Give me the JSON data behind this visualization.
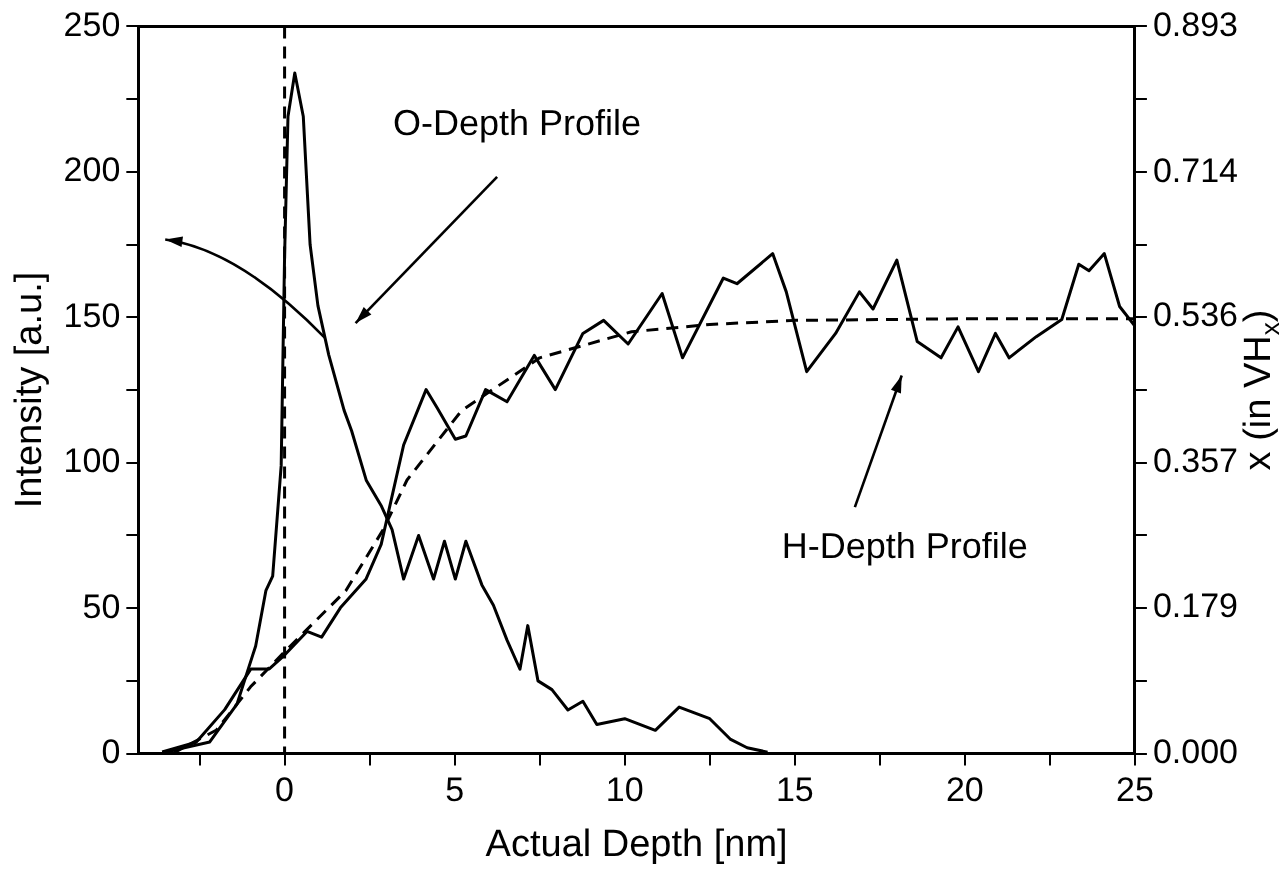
{
  "chart_data": {
    "type": "line",
    "xlabel": "Actual Depth [nm]",
    "ylabel": "Intensity [a.u.]",
    "y2label": "x (in VH$_{x}$)",
    "xlim": [
      -4.3,
      25
    ],
    "xticks": [
      {
        "value": -2.5,
        "label": null
      },
      0,
      {
        "value": 2.5,
        "label": null
      },
      5,
      {
        "value": 7.5,
        "label": null
      },
      10,
      {
        "value": 12.5,
        "label": null
      },
      15,
      {
        "value": 17.5,
        "label": null
      },
      20,
      {
        "value": 22.5,
        "label": null
      },
      25
    ],
    "ylim": [
      0,
      250
    ],
    "yticks": [
      0,
      {
        "value": 25,
        "label": null
      },
      50,
      {
        "value": 75,
        "label": null
      },
      100,
      {
        "value": 125,
        "label": null
      },
      150,
      {
        "value": 175,
        "label": null
      },
      200,
      {
        "value": 225,
        "label": null
      },
      250
    ],
    "y2lim": [
      0,
      0.893
    ],
    "y2ticks": [
      {
        "value": 0,
        "label": "0.000"
      },
      {
        "value": 0.089,
        "label": null
      },
      0.179,
      {
        "value": 0.268,
        "label": null
      },
      0.357,
      {
        "value": 0.446,
        "label": null
      },
      0.536,
      {
        "value": 0.625,
        "label": null
      },
      0.714,
      {
        "value": 0.804,
        "label": null
      },
      0.893
    ],
    "grid": false,
    "legend": false,
    "marker": "none",
    "line_style": "solid",
    "series": [
      {
        "color": "#000000",
        "x": [
          -3.5,
          -2.2,
          -1.4,
          -0.85,
          -0.55,
          -0.35,
          -0.1,
          0,
          0.1,
          0.3,
          0.55,
          0.75,
          0.98,
          1.3,
          1.75,
          1.97,
          2.4,
          2.85,
          3.16,
          3.5,
          3.94,
          4.38,
          4.7,
          5.02,
          5.33,
          5.8,
          6.14,
          6.54,
          6.92,
          7.15,
          7.45,
          7.86,
          8.33,
          8.77,
          9.18,
          10,
          10.9,
          11.6,
          12.5,
          13.1,
          13.6,
          14.2
        ],
        "values": [
          0.5,
          4,
          17,
          37,
          56,
          61,
          99,
          171,
          219,
          234,
          219,
          175,
          154,
          137,
          118,
          111,
          94,
          85,
          77,
          60,
          75,
          60,
          73,
          60,
          73,
          58,
          51,
          39,
          29,
          44,
          25,
          22,
          15,
          18,
          10,
          12,
          8,
          16,
          12,
          5,
          2,
          0.5
        ]
      },
      {
        "color": "#000000",
        "axis": "y2",
        "x": [
          -3.6,
          -2.6,
          -1.76,
          -0.99,
          -0.45,
          0,
          0.66,
          1.09,
          1.64,
          2.39,
          2.84,
          3.5,
          4.16,
          4.48,
          5.02,
          5.33,
          5.91,
          6.54,
          7.34,
          7.96,
          8.77,
          9.38,
          10.1,
          11.1,
          11.7,
          12.9,
          13.3,
          14.35,
          14.75,
          15.35,
          16.2,
          16.9,
          17.3,
          18,
          18.6,
          19.3,
          19.8,
          20.4,
          20.9,
          21.3,
          22.1,
          22.85,
          23.35,
          23.65,
          24.1,
          24.55,
          25
        ],
        "values": [
          0.002,
          0.014,
          0.054,
          0.104,
          0.104,
          0.121,
          0.15,
          0.143,
          0.179,
          0.214,
          0.257,
          0.379,
          0.447,
          0.425,
          0.386,
          0.39,
          0.447,
          0.432,
          0.489,
          0.447,
          0.516,
          0.532,
          0.503,
          0.565,
          0.486,
          0.584,
          0.577,
          0.614,
          0.567,
          0.469,
          0.516,
          0.567,
          0.546,
          0.606,
          0.506,
          0.486,
          0.524,
          0.469,
          0.516,
          0.486,
          0.512,
          0.533,
          0.601,
          0.593,
          0.614,
          0.549,
          0.525
        ]
      },
      {
        "color": "#000000",
        "axis": "y2",
        "line_style": "dashed",
        "x": [
          -3.3,
          -2,
          -1,
          0,
          1.8,
          2.9,
          3.6,
          5.2,
          7.5,
          10.2,
          12.5,
          15,
          20,
          25
        ],
        "values": [
          0,
          0.029,
          0.082,
          0.125,
          0.2,
          0.275,
          0.336,
          0.421,
          0.486,
          0.518,
          0.527,
          0.532,
          0.534,
          0.534
        ]
      }
    ],
    "ref_lines": [
      {
        "axis": "x",
        "value": 0,
        "color": "#000000",
        "line_style": "dashed"
      }
    ],
    "annotations": [
      "O-Depth Profile",
      "H-Depth Profile"
    ]
  }
}
